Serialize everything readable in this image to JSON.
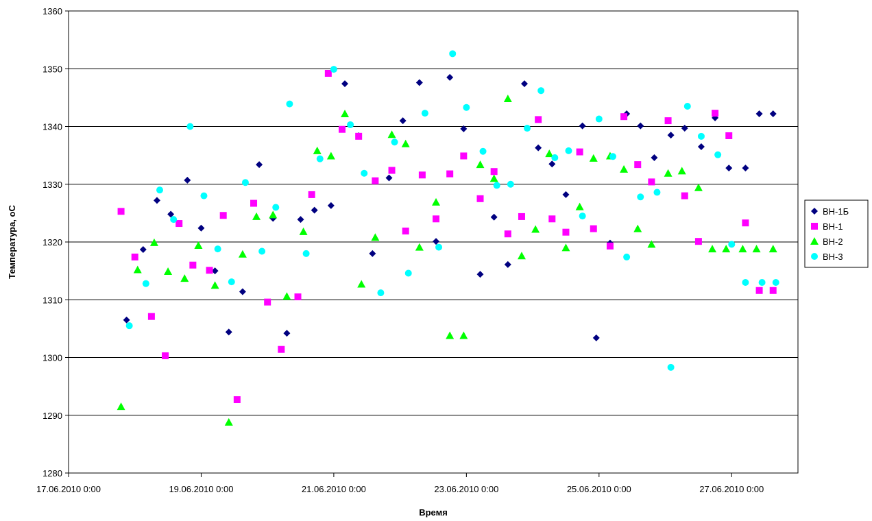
{
  "chart_data": {
    "type": "scatter",
    "title": "",
    "xlabel": "Время",
    "ylabel": "Температура, оС",
    "x_unit": "date",
    "xlim": [
      "2010-06-17T00:00",
      "2010-06-28T00:00"
    ],
    "ylim": [
      1280,
      1360
    ],
    "y_ticks": [
      1280,
      1290,
      1300,
      1310,
      1320,
      1330,
      1340,
      1350,
      1360
    ],
    "x_ticks": [
      "2010-06-17T00:00",
      "2010-06-19T00:00",
      "2010-06-21T00:00",
      "2010-06-23T00:00",
      "2010-06-25T00:00",
      "2010-06-27T00:00"
    ],
    "x_tick_labels": [
      "17.06.2010 0:00",
      "19.06.2010 0:00",
      "21.06.2010 0:00",
      "23.06.2010 0:00",
      "25.06.2010 0:00",
      "27.06.2010 0:00"
    ],
    "grid": "horizontal",
    "legend_position": "right",
    "series": [
      {
        "name": "ВН-1Б",
        "marker": "diamond",
        "color": "#000080",
        "x": [
          "2010-06-17T21:00",
          "2010-06-18T03:00",
          "2010-06-18T08:00",
          "2010-06-18T13:00",
          "2010-06-18T19:00",
          "2010-06-19T00:00",
          "2010-06-19T05:00",
          "2010-06-19T10:00",
          "2010-06-19T15:00",
          "2010-06-19T21:00",
          "2010-06-20T02:00",
          "2010-06-20T07:00",
          "2010-06-20T12:00",
          "2010-06-20T17:00",
          "2010-06-20T23:00",
          "2010-06-21T04:00",
          "2010-06-21T09:00",
          "2010-06-21T14:00",
          "2010-06-21T20:00",
          "2010-06-22T01:00",
          "2010-06-22T07:00",
          "2010-06-22T13:00",
          "2010-06-22T18:00",
          "2010-06-22T23:00",
          "2010-06-23T05:00",
          "2010-06-23T10:00",
          "2010-06-23T15:00",
          "2010-06-23T21:00",
          "2010-06-24T02:00",
          "2010-06-24T07:00",
          "2010-06-24T12:00",
          "2010-06-24T18:00",
          "2010-06-24T23:00",
          "2010-06-25T04:00",
          "2010-06-25T10:00",
          "2010-06-25T15:00",
          "2010-06-25T20:00",
          "2010-06-26T02:00",
          "2010-06-26T07:00",
          "2010-06-26T13:00",
          "2010-06-26T18:00",
          "2010-06-26T23:00",
          "2010-06-27T05:00",
          "2010-06-27T10:00",
          "2010-06-27T15:00"
        ],
        "y": [
          1306.5,
          1318.7,
          1327.2,
          1324.8,
          1330.7,
          1322.4,
          1315.0,
          1304.4,
          1311.4,
          1333.4,
          1324.1,
          1304.2,
          1323.9,
          1325.5,
          1326.3,
          1347.4,
          1338.4,
          1318.0,
          1331.1,
          1341.0,
          1347.6,
          1320.1,
          1348.5,
          1339.6,
          1314.4,
          1324.3,
          1316.1,
          1347.4,
          1336.3,
          1333.5,
          1328.2,
          1340.1,
          1303.4,
          1319.8,
          1342.2,
          1340.1,
          1334.6,
          1338.5,
          1339.7,
          1336.5,
          1341.5,
          1332.8,
          1332.8,
          1342.2,
          1342.2
        ]
      },
      {
        "name": "ВН-1",
        "marker": "square",
        "color": "#FF00FF",
        "x": [
          "2010-06-17T19:00",
          "2010-06-18T00:00",
          "2010-06-18T06:00",
          "2010-06-18T11:00",
          "2010-06-18T16:00",
          "2010-06-18T21:00",
          "2010-06-19T03:00",
          "2010-06-19T08:00",
          "2010-06-19T13:00",
          "2010-06-19T19:00",
          "2010-06-20T00:00",
          "2010-06-20T05:00",
          "2010-06-20T11:00",
          "2010-06-20T16:00",
          "2010-06-20T22:00",
          "2010-06-21T03:00",
          "2010-06-21T09:00",
          "2010-06-21T15:00",
          "2010-06-21T21:00",
          "2010-06-22T02:00",
          "2010-06-22T08:00",
          "2010-06-22T13:00",
          "2010-06-22T18:00",
          "2010-06-22T23:00",
          "2010-06-23T05:00",
          "2010-06-23T10:00",
          "2010-06-23T15:00",
          "2010-06-23T20:00",
          "2010-06-24T02:00",
          "2010-06-24T07:00",
          "2010-06-24T12:00",
          "2010-06-24T17:00",
          "2010-06-24T22:00",
          "2010-06-25T04:00",
          "2010-06-25T09:00",
          "2010-06-25T14:00",
          "2010-06-25T19:00",
          "2010-06-26T01:00",
          "2010-06-26T07:00",
          "2010-06-26T12:00",
          "2010-06-26T18:00",
          "2010-06-26T23:00",
          "2010-06-27T05:00",
          "2010-06-27T10:00",
          "2010-06-27T15:00"
        ],
        "y": [
          1325.3,
          1317.4,
          1307.1,
          1300.3,
          1323.2,
          1316.0,
          1315.1,
          1324.6,
          1292.7,
          1326.7,
          1309.6,
          1301.4,
          1310.5,
          1328.2,
          1349.2,
          1339.5,
          1338.3,
          1330.6,
          1332.4,
          1321.9,
          1331.6,
          1324.0,
          1331.8,
          1334.9,
          1327.5,
          1332.2,
          1321.4,
          1324.4,
          1341.2,
          1324.0,
          1321.7,
          1335.6,
          1322.3,
          1319.3,
          1341.7,
          1333.4,
          1330.4,
          1341.0,
          1328.0,
          1320.1,
          1342.3,
          1338.4,
          1323.3,
          1311.6,
          1311.6
        ]
      },
      {
        "name": "ВН-2",
        "marker": "triangle",
        "color": "#00FF00",
        "x": [
          "2010-06-17T19:00",
          "2010-06-18T01:00",
          "2010-06-18T07:00",
          "2010-06-18T12:00",
          "2010-06-18T18:00",
          "2010-06-18T23:00",
          "2010-06-19T05:00",
          "2010-06-19T10:00",
          "2010-06-19T15:00",
          "2010-06-19T20:00",
          "2010-06-20T02:00",
          "2010-06-20T07:00",
          "2010-06-20T13:00",
          "2010-06-20T18:00",
          "2010-06-20T23:00",
          "2010-06-21T04:00",
          "2010-06-21T10:00",
          "2010-06-21T15:00",
          "2010-06-21T21:00",
          "2010-06-22T02:00",
          "2010-06-22T07:00",
          "2010-06-22T13:00",
          "2010-06-22T18:00",
          "2010-06-22T23:00",
          "2010-06-23T05:00",
          "2010-06-23T10:00",
          "2010-06-23T15:00",
          "2010-06-23T20:00",
          "2010-06-24T01:00",
          "2010-06-24T06:00",
          "2010-06-24T12:00",
          "2010-06-24T17:00",
          "2010-06-24T22:00",
          "2010-06-25T04:00",
          "2010-06-25T09:00",
          "2010-06-25T14:00",
          "2010-06-25T19:00",
          "2010-06-26T01:00",
          "2010-06-26T06:00",
          "2010-06-26T12:00",
          "2010-06-26T17:00",
          "2010-06-26T22:00",
          "2010-06-27T04:00",
          "2010-06-27T09:00",
          "2010-06-27T15:00"
        ],
        "y": [
          1291.5,
          1315.2,
          1319.9,
          1314.9,
          1313.7,
          1319.4,
          1312.5,
          1288.8,
          1317.9,
          1324.4,
          1324.7,
          1310.6,
          1321.8,
          1335.8,
          1334.9,
          1342.2,
          1312.7,
          1320.8,
          1338.6,
          1337.0,
          1319.1,
          1326.9,
          1303.8,
          1303.8,
          1333.4,
          1331.0,
          1344.8,
          1317.6,
          1322.2,
          1335.3,
          1319.0,
          1326.1,
          1334.5,
          1334.9,
          1332.6,
          1322.3,
          1319.6,
          1331.9,
          1332.3,
          1329.4,
          1318.8,
          1318.8,
          1318.8,
          1318.8,
          1318.8
        ]
      },
      {
        "name": "ВН-3",
        "marker": "circle",
        "color": "#00FFFF",
        "x": [
          "2010-06-17T22:00",
          "2010-06-18T04:00",
          "2010-06-18T09:00",
          "2010-06-18T14:00",
          "2010-06-18T20:00",
          "2010-06-19T01:00",
          "2010-06-19T06:00",
          "2010-06-19T11:00",
          "2010-06-19T16:00",
          "2010-06-19T22:00",
          "2010-06-20T03:00",
          "2010-06-20T08:00",
          "2010-06-20T14:00",
          "2010-06-20T19:00",
          "2010-06-21T00:00",
          "2010-06-21T06:00",
          "2010-06-21T11:00",
          "2010-06-21T17:00",
          "2010-06-21T22:00",
          "2010-06-22T03:00",
          "2010-06-22T09:00",
          "2010-06-22T14:00",
          "2010-06-22T19:00",
          "2010-06-23T00:00",
          "2010-06-23T06:00",
          "2010-06-23T11:00",
          "2010-06-23T16:00",
          "2010-06-23T22:00",
          "2010-06-24T03:00",
          "2010-06-24T08:00",
          "2010-06-24T13:00",
          "2010-06-24T18:00",
          "2010-06-25T00:00",
          "2010-06-25T05:00",
          "2010-06-25T10:00",
          "2010-06-25T15:00",
          "2010-06-25T21:00",
          "2010-06-26T02:00",
          "2010-06-26T08:00",
          "2010-06-26T13:00",
          "2010-06-26T19:00",
          "2010-06-27T00:00",
          "2010-06-27T05:00",
          "2010-06-27T11:00",
          "2010-06-27T16:00"
        ],
        "y": [
          1305.5,
          1312.8,
          1329.0,
          1323.9,
          1340.0,
          1328.0,
          1318.8,
          1313.1,
          1330.3,
          1318.4,
          1326.0,
          1343.9,
          1318.0,
          1334.4,
          1349.9,
          1340.3,
          1331.9,
          1311.2,
          1337.3,
          1314.6,
          1342.3,
          1319.1,
          1352.6,
          1343.3,
          1335.7,
          1329.8,
          1330.0,
          1339.7,
          1346.2,
          1334.6,
          1335.8,
          1324.5,
          1341.3,
          1334.8,
          1317.4,
          1327.8,
          1328.6,
          1298.3,
          1343.5,
          1338.3,
          1335.1,
          1319.6,
          1313.0,
          1313.0,
          1313.0
        ]
      }
    ]
  }
}
